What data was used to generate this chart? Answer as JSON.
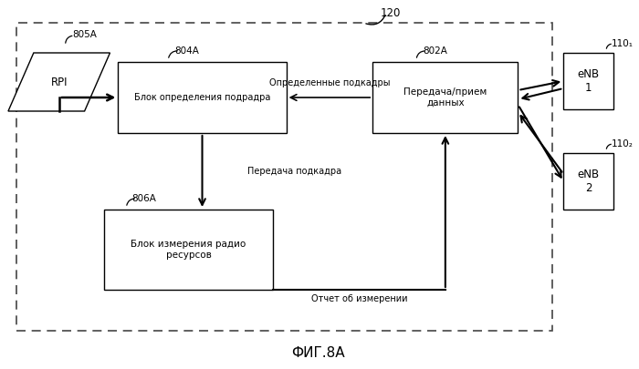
{
  "title": "ФИГ.8А",
  "label_120": "120",
  "label_805A": "805A",
  "label_804A": "804A",
  "label_802A": "802A",
  "label_806A": "806A",
  "label_110_1": "110₁",
  "label_110_2": "110₂",
  "rpi_text": "RPI",
  "block_804_text": "Блок определения подрадра",
  "block_802_text": "Передача/прием\nданных",
  "block_806_text": "Блок измерения радио\nресурсов",
  "enb1_text": "eNB\n1",
  "enb2_text": "eNB\n2",
  "arrow_label_determined": "Определенные подкадры",
  "arrow_label_subframe": "Передача подкадра",
  "arrow_label_report": "Отчет об измерении",
  "bg_color": "#ffffff"
}
